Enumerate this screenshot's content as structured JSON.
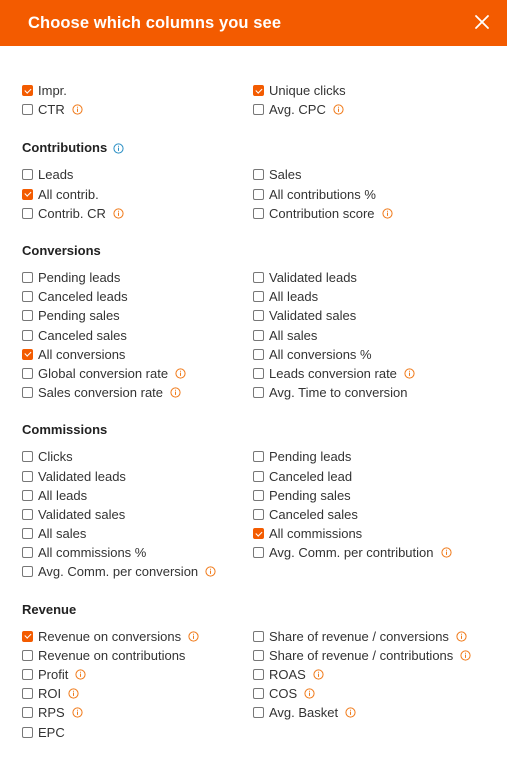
{
  "header": {
    "title": "Choose which columns you see"
  },
  "sections": [
    {
      "title": "",
      "left": [
        {
          "label": "Impr.",
          "checked": true,
          "info": false
        },
        {
          "label": "CTR",
          "checked": false,
          "info": true
        }
      ],
      "right": [
        {
          "label": "Unique clicks",
          "checked": true,
          "info": false
        },
        {
          "label": "Avg. CPC",
          "checked": false,
          "info": true
        }
      ]
    },
    {
      "title": "Contributions",
      "title_info": true,
      "left": [
        {
          "label": "Leads",
          "checked": false,
          "info": false
        },
        {
          "label": "All contrib.",
          "checked": true,
          "info": false
        },
        {
          "label": "Contrib. CR",
          "checked": false,
          "info": true
        }
      ],
      "right": [
        {
          "label": "Sales",
          "checked": false,
          "info": false
        },
        {
          "label": "All contributions %",
          "checked": false,
          "info": false
        },
        {
          "label": "Contribution score",
          "checked": false,
          "info": true
        }
      ]
    },
    {
      "title": "Conversions",
      "left": [
        {
          "label": "Pending leads",
          "checked": false,
          "info": false
        },
        {
          "label": "Canceled leads",
          "checked": false,
          "info": false
        },
        {
          "label": "Pending sales",
          "checked": false,
          "info": false
        },
        {
          "label": "Canceled sales",
          "checked": false,
          "info": false
        },
        {
          "label": "All conversions",
          "checked": true,
          "info": false
        },
        {
          "label": "Global conversion rate",
          "checked": false,
          "info": true
        },
        {
          "label": "Sales conversion rate",
          "checked": false,
          "info": true
        }
      ],
      "right": [
        {
          "label": "Validated leads",
          "checked": false,
          "info": false
        },
        {
          "label": "All leads",
          "checked": false,
          "info": false
        },
        {
          "label": "Validated sales",
          "checked": false,
          "info": false
        },
        {
          "label": "All sales",
          "checked": false,
          "info": false
        },
        {
          "label": "All conversions %",
          "checked": false,
          "info": false
        },
        {
          "label": "Leads conversion rate",
          "checked": false,
          "info": true
        },
        {
          "label": "Avg. Time to conversion",
          "checked": false,
          "info": false
        }
      ]
    },
    {
      "title": "Commissions",
      "left": [
        {
          "label": "Clicks",
          "checked": false,
          "info": false
        },
        {
          "label": "Validated leads",
          "checked": false,
          "info": false
        },
        {
          "label": "All leads",
          "checked": false,
          "info": false
        },
        {
          "label": "Validated sales",
          "checked": false,
          "info": false
        },
        {
          "label": "All sales",
          "checked": false,
          "info": false
        },
        {
          "label": "All commissions %",
          "checked": false,
          "info": false
        },
        {
          "label": "Avg. Comm. per conversion",
          "checked": false,
          "info": true
        }
      ],
      "right": [
        {
          "label": "Pending leads",
          "checked": false,
          "info": false
        },
        {
          "label": "Canceled lead",
          "checked": false,
          "info": false
        },
        {
          "label": "Pending sales",
          "checked": false,
          "info": false
        },
        {
          "label": "Canceled sales",
          "checked": false,
          "info": false
        },
        {
          "label": "All commissions",
          "checked": true,
          "info": false
        },
        {
          "label": "Avg. Comm. per contribution",
          "checked": false,
          "info": true
        }
      ]
    },
    {
      "title": "Revenue",
      "left": [
        {
          "label": "Revenue on conversions",
          "checked": true,
          "info": true
        },
        {
          "label": "Revenue on contributions",
          "checked": false,
          "info": false
        },
        {
          "label": "Profit",
          "checked": false,
          "info": true
        },
        {
          "label": "ROI",
          "checked": false,
          "info": true
        },
        {
          "label": "RPS",
          "checked": false,
          "info": true
        },
        {
          "label": "EPC",
          "checked": false,
          "info": false
        }
      ],
      "right": [
        {
          "label": "Share of revenue / conversions",
          "checked": false,
          "info": true
        },
        {
          "label": "Share of revenue / contributions",
          "checked": false,
          "info": true
        },
        {
          "label": "ROAS",
          "checked": false,
          "info": true
        },
        {
          "label": "COS",
          "checked": false,
          "info": true
        },
        {
          "label": "Avg. Basket",
          "checked": false,
          "info": true
        }
      ]
    }
  ],
  "colors": {
    "accent": "#f35b00",
    "info_orange": "#f07a1a",
    "info_blue": "#2a8fc4"
  },
  "icons": {
    "close": "close-icon",
    "info": "info-icon"
  }
}
